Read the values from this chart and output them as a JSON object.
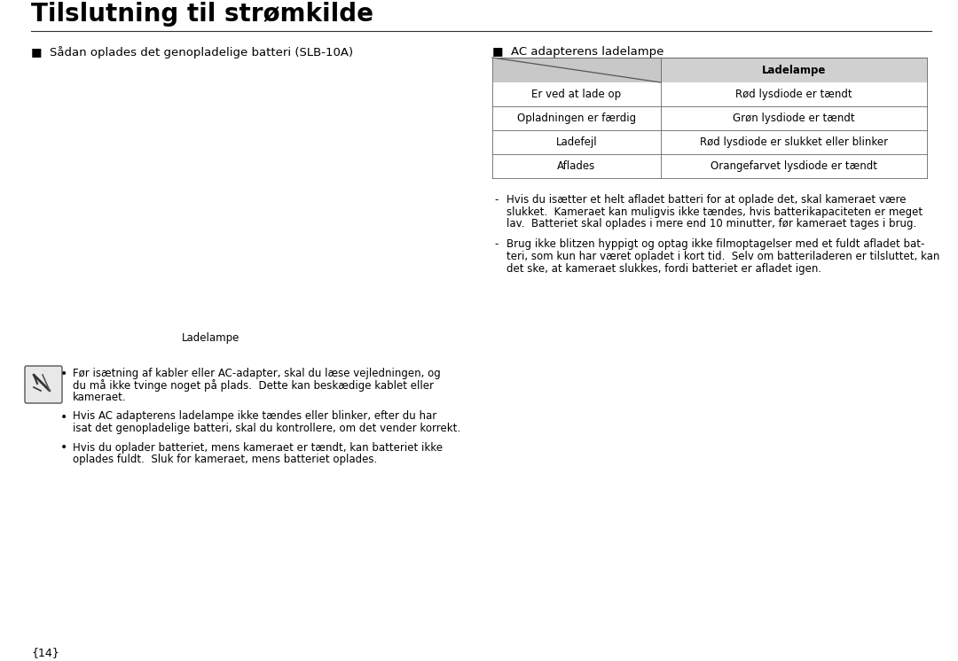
{
  "title": "Tilslutning til strømkilde",
  "bg_color": "#ffffff",
  "title_color": "#000000",
  "section1_header": "■  Sådan oplades det genopladelige batteri (SLB-10A)",
  "section2_header": "■  AC adapterens ladelampe",
  "table_header_col2": "Ladelampe",
  "table_rows": [
    [
      "Er ved at lade op",
      "Rød lysdiode er tændt"
    ],
    [
      "Opladningen er færdig",
      "Grøn lysdiode er tændt"
    ],
    [
      "Ladefejl",
      "Rød lysdiode er slukket eller blinker"
    ],
    [
      "Aflades",
      "Orangefarvet lysdiode er tændt"
    ]
  ],
  "table_header_bg": "#d0d0d0",
  "table_header_left_bg": "#c8c8c8",
  "ladelampe_label": "Ladelampe",
  "bullet_notes": [
    "Før isætning af kabler eller AC-adapter, skal du læse vejledningen, og\ndu må ikke tvinge noget på plads.  Dette kan beskædige kablet eller\nkameraet.",
    "Hvis AC adapterens ladelampe ikke tændes eller blinker, efter du har\nisat det genopladelige batteri, skal du kontrollere, om det vender korrekt.",
    "Hvis du oplader batteriet, mens kameraet er tændt, kan batteriet ikke\noplades fuldt.  Sluk for kameraet, mens batteriet oplades."
  ],
  "dash_notes": [
    "Hvis du isætter et helt afladet batteri for at oplade det, skal kameraet være\nslukket.  Kameraet kan muligvis ikke tændes, hvis batterikapaciteten er meget\nlav.  Batteriet skal oplades i mere end 10 minutter, før kameraet tages i brug.",
    "Brug ikke blitzen hyppigt og optag ikke filmoptagelser med et fuldt afladet bat-\nteri, som kun har været opladet i kort tid.  Selv om batteriladeren er tilsluttet, kan\ndet ske, at kameraet slukkes, fordi batteriet er afladet igen."
  ],
  "page_number": "{14}",
  "font_size_title": 20,
  "font_size_section": 9.5,
  "font_size_table": 8.5,
  "font_size_body": 8.5,
  "font_size_page": 9
}
